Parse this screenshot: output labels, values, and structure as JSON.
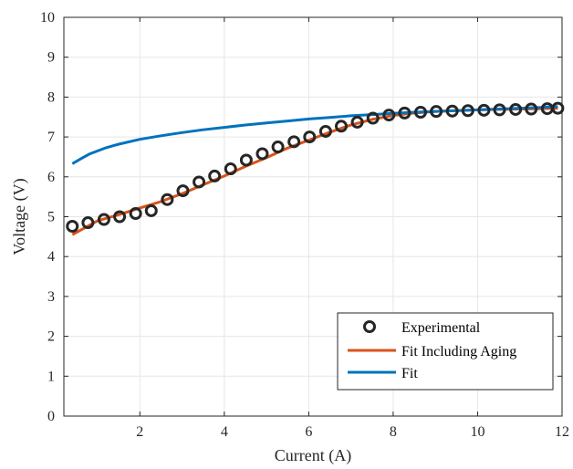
{
  "chart_data": {
    "type": "line",
    "title": "",
    "xlabel": "Current (A)",
    "ylabel": "Voltage (V)",
    "xlim": [
      0.2,
      12
    ],
    "ylim": [
      0,
      10
    ],
    "xticks": [
      2,
      4,
      6,
      8,
      10,
      12
    ],
    "yticks": [
      0,
      1,
      2,
      3,
      4,
      5,
      6,
      7,
      8,
      9,
      10
    ],
    "grid": true,
    "legend_position": "bottom-right",
    "series": [
      {
        "name": "Experimental",
        "kind": "markers",
        "marker": "circle",
        "color": "#262626",
        "x": [
          0.4,
          0.77,
          1.15,
          1.52,
          1.9,
          2.27,
          2.65,
          3.02,
          3.4,
          3.77,
          4.15,
          4.52,
          4.9,
          5.27,
          5.65,
          6.02,
          6.4,
          6.77,
          7.15,
          7.52,
          7.9,
          8.27,
          8.65,
          9.02,
          9.4,
          9.77,
          10.15,
          10.52,
          10.9,
          11.27,
          11.65,
          11.9
        ],
        "y": [
          4.76,
          4.85,
          4.93,
          5.0,
          5.08,
          5.15,
          5.43,
          5.65,
          5.87,
          6.02,
          6.2,
          6.42,
          6.58,
          6.75,
          6.88,
          7.0,
          7.14,
          7.27,
          7.37,
          7.47,
          7.55,
          7.6,
          7.62,
          7.64,
          7.65,
          7.66,
          7.67,
          7.68,
          7.69,
          7.7,
          7.71,
          7.72
        ]
      },
      {
        "name": "Fit Including Aging",
        "kind": "line",
        "color": "#D95319",
        "x": [
          0.4,
          1,
          1.5,
          2,
          2.5,
          3,
          3.5,
          4,
          4.5,
          5,
          5.5,
          6,
          6.5,
          7,
          7.5,
          8,
          8.5,
          9,
          9.5,
          10,
          10.5,
          11,
          11.5,
          11.9
        ],
        "y": [
          4.55,
          4.9,
          5.05,
          5.22,
          5.38,
          5.58,
          5.8,
          6.02,
          6.26,
          6.48,
          6.72,
          6.92,
          7.12,
          7.3,
          7.44,
          7.54,
          7.6,
          7.64,
          7.66,
          7.68,
          7.69,
          7.7,
          7.71,
          7.72
        ]
      },
      {
        "name": "Fit",
        "kind": "line",
        "color": "#0072BD",
        "x": [
          0.4,
          0.6,
          0.8,
          1.0,
          1.2,
          1.5,
          2.0,
          2.5,
          3.0,
          3.5,
          4.0,
          4.5,
          5.0,
          5.5,
          6.0,
          6.5,
          7.0,
          7.5,
          8.0,
          8.5,
          9.0,
          9.5,
          10.0,
          10.5,
          11.0,
          11.5,
          11.9
        ],
        "y": [
          6.33,
          6.45,
          6.57,
          6.65,
          6.73,
          6.82,
          6.94,
          7.03,
          7.11,
          7.18,
          7.24,
          7.3,
          7.35,
          7.4,
          7.45,
          7.49,
          7.53,
          7.56,
          7.59,
          7.62,
          7.64,
          7.66,
          7.68,
          7.7,
          7.72,
          7.74,
          7.76
        ]
      }
    ]
  }
}
